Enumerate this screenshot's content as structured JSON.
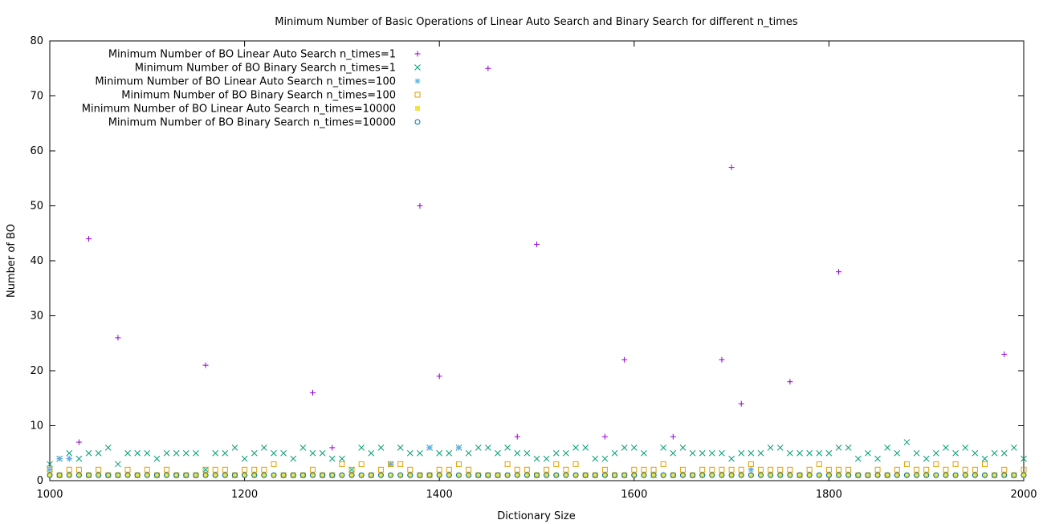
{
  "chart_data": {
    "type": "scatter",
    "title": "Minimum Number of Basic Operations of Linear Auto Search and Binary Search for different n_times",
    "xlabel": "Dictionary Size",
    "ylabel": "Number of BO",
    "xlim": [
      1000,
      2000
    ],
    "ylim": [
      0,
      80
    ],
    "x_ticks": [
      1000,
      1200,
      1400,
      1600,
      1800,
      2000
    ],
    "y_ticks": [
      0,
      10,
      20,
      30,
      40,
      50,
      60,
      70,
      80
    ],
    "grid": false,
    "legend_position": "top-left",
    "x": [
      1000,
      1010,
      1020,
      1030,
      1040,
      1050,
      1060,
      1070,
      1080,
      1090,
      1100,
      1110,
      1120,
      1130,
      1140,
      1150,
      1160,
      1170,
      1180,
      1190,
      1200,
      1210,
      1220,
      1230,
      1240,
      1250,
      1260,
      1270,
      1280,
      1290,
      1300,
      1310,
      1320,
      1330,
      1340,
      1350,
      1360,
      1370,
      1380,
      1390,
      1400,
      1410,
      1420,
      1430,
      1440,
      1450,
      1460,
      1470,
      1480,
      1490,
      1500,
      1510,
      1520,
      1530,
      1540,
      1550,
      1560,
      1570,
      1580,
      1590,
      1600,
      1610,
      1620,
      1630,
      1640,
      1650,
      1660,
      1670,
      1680,
      1690,
      1700,
      1710,
      1720,
      1730,
      1740,
      1750,
      1760,
      1770,
      1780,
      1790,
      1800,
      1810,
      1820,
      1830,
      1840,
      1850,
      1860,
      1870,
      1880,
      1890,
      1900,
      1910,
      1920,
      1930,
      1940,
      1950,
      1960,
      1970,
      1980,
      1990,
      2000
    ],
    "series": [
      {
        "name": "Minimum Number of BO Linear Auto Search n_times=1",
        "color": "#9400d3",
        "marker": "plus",
        "values": [
          2,
          4,
          4,
          7,
          44,
          1,
          1,
          26,
          1,
          1,
          1,
          1,
          1,
          1,
          1,
          1,
          21,
          1,
          1,
          1,
          1,
          1,
          1,
          1,
          1,
          1,
          1,
          16,
          1,
          6,
          1,
          1,
          1,
          1,
          1,
          3,
          1,
          1,
          50,
          6,
          19,
          1,
          6,
          1,
          1,
          75,
          1,
          1,
          8,
          1,
          43,
          1,
          1,
          1,
          1,
          1,
          1,
          8,
          1,
          22,
          1,
          1,
          1,
          1,
          8,
          1,
          1,
          1,
          1,
          22,
          57,
          14,
          2,
          1,
          1,
          1,
          18,
          1,
          1,
          1,
          1,
          38,
          1,
          1,
          1,
          1,
          1,
          1,
          1,
          1,
          1,
          1,
          1,
          1,
          1,
          1,
          1,
          1,
          23,
          1,
          1
        ]
      },
      {
        "name": "Minimum Number of BO Binary Search n_times=1",
        "color": "#009e73",
        "marker": "x",
        "values": [
          3,
          4,
          5,
          4,
          5,
          5,
          6,
          3,
          5,
          5,
          5,
          4,
          5,
          5,
          5,
          5,
          2,
          5,
          5,
          6,
          4,
          5,
          6,
          5,
          5,
          4,
          6,
          5,
          5,
          4,
          4,
          2,
          6,
          5,
          6,
          3,
          6,
          5,
          5,
          6,
          5,
          5,
          6,
          5,
          6,
          6,
          5,
          6,
          5,
          5,
          4,
          4,
          5,
          5,
          6,
          6,
          4,
          4,
          5,
          6,
          6,
          5,
          1,
          6,
          5,
          6,
          5,
          5,
          5,
          5,
          4,
          5,
          5,
          5,
          6,
          6,
          5,
          5,
          5,
          5,
          5,
          6,
          6,
          4,
          5,
          4,
          6,
          5,
          7,
          5,
          4,
          5,
          6,
          5,
          6,
          5,
          4,
          5,
          5,
          6,
          4
        ]
      },
      {
        "name": "Minimum Number of BO Linear Auto Search n_times=100",
        "color": "#56b4e9",
        "marker": "asterisk",
        "values": [
          2,
          4,
          4,
          1,
          1,
          1,
          1,
          1,
          1,
          1,
          1,
          1,
          1,
          1,
          1,
          1,
          1,
          1,
          1,
          1,
          1,
          1,
          1,
          1,
          1,
          1,
          1,
          1,
          1,
          1,
          1,
          1,
          1,
          1,
          1,
          3,
          1,
          1,
          1,
          6,
          1,
          1,
          6,
          1,
          1,
          1,
          1,
          1,
          1,
          1,
          1,
          1,
          1,
          1,
          1,
          1,
          1,
          1,
          1,
          1,
          1,
          1,
          1,
          1,
          1,
          1,
          1,
          1,
          1,
          1,
          1,
          1,
          2,
          1,
          1,
          1,
          1,
          1,
          1,
          1,
          1,
          1,
          1,
          1,
          1,
          1,
          1,
          1,
          1,
          1,
          1,
          1,
          1,
          1,
          1,
          1,
          1,
          1,
          1,
          1,
          1
        ]
      },
      {
        "name": "Minimum Number of BO Binary Search n_times=100",
        "color": "#e69f00",
        "marker": "square-open",
        "values": [
          2,
          1,
          2,
          2,
          1,
          2,
          1,
          1,
          2,
          1,
          2,
          1,
          2,
          1,
          1,
          1,
          2,
          2,
          2,
          1,
          2,
          2,
          2,
          3,
          1,
          1,
          1,
          2,
          1,
          1,
          3,
          2,
          3,
          1,
          2,
          3,
          3,
          2,
          1,
          1,
          2,
          2,
          3,
          2,
          1,
          1,
          1,
          3,
          2,
          2,
          1,
          2,
          3,
          2,
          3,
          1,
          1,
          2,
          1,
          1,
          2,
          2,
          2,
          3,
          1,
          2,
          1,
          2,
          2,
          2,
          2,
          2,
          3,
          2,
          2,
          2,
          2,
          1,
          2,
          3,
          2,
          2,
          2,
          1,
          1,
          2,
          1,
          2,
          3,
          2,
          2,
          3,
          2,
          3,
          2,
          2,
          3,
          1,
          2,
          1,
          2
        ]
      },
      {
        "name": "Minimum Number of BO Linear Auto Search n_times=10000",
        "color": "#f0e442",
        "marker": "square-filled",
        "values": [
          1,
          1,
          1,
          1,
          1,
          1,
          1,
          1,
          1,
          1,
          1,
          1,
          1,
          1,
          1,
          1,
          1,
          1,
          1,
          1,
          1,
          1,
          1,
          1,
          1,
          1,
          1,
          1,
          1,
          1,
          1,
          1,
          1,
          1,
          1,
          1,
          1,
          1,
          1,
          1,
          1,
          1,
          1,
          1,
          1,
          1,
          1,
          1,
          1,
          1,
          1,
          1,
          1,
          1,
          1,
          1,
          1,
          1,
          1,
          1,
          1,
          1,
          1,
          1,
          1,
          1,
          1,
          1,
          1,
          1,
          1,
          1,
          1,
          1,
          1,
          1,
          1,
          1,
          1,
          1,
          1,
          1,
          1,
          1,
          1,
          1,
          1,
          1,
          1,
          1,
          1,
          1,
          1,
          1,
          1,
          1,
          1,
          1,
          1,
          1,
          1
        ]
      },
      {
        "name": "Minimum Number of BO Binary Search n_times=10000",
        "color": "#0072b2",
        "marker": "circle-open",
        "values": [
          1,
          1,
          1,
          1,
          1,
          1,
          1,
          1,
          1,
          1,
          1,
          1,
          1,
          1,
          1,
          1,
          1,
          1,
          1,
          1,
          1,
          1,
          1,
          1,
          1,
          1,
          1,
          1,
          1,
          1,
          1,
          1,
          1,
          1,
          1,
          1,
          1,
          1,
          1,
          1,
          1,
          1,
          1,
          1,
          1,
          1,
          1,
          1,
          1,
          1,
          1,
          1,
          1,
          1,
          1,
          1,
          1,
          1,
          1,
          1,
          1,
          1,
          1,
          1,
          1,
          1,
          1,
          1,
          1,
          1,
          1,
          1,
          1,
          1,
          1,
          1,
          1,
          1,
          1,
          1,
          1,
          1,
          1,
          1,
          1,
          1,
          1,
          1,
          1,
          1,
          1,
          1,
          1,
          1,
          1,
          1,
          1,
          1,
          1,
          1,
          1
        ]
      }
    ]
  }
}
